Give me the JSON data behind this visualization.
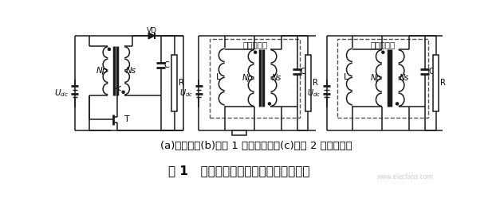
{
  "title": "图 1   理想反激变换器和它的等效电路图",
  "caption": "(a)原理图；(b)阶段 1 的等效电路；(c)阶段 2 的等效电路",
  "box_label": "变压器模型",
  "bg_color": "#ffffff",
  "line_color": "#1a1a1a",
  "fig_width": 6.27,
  "fig_height": 2.59,
  "dpi": 100
}
